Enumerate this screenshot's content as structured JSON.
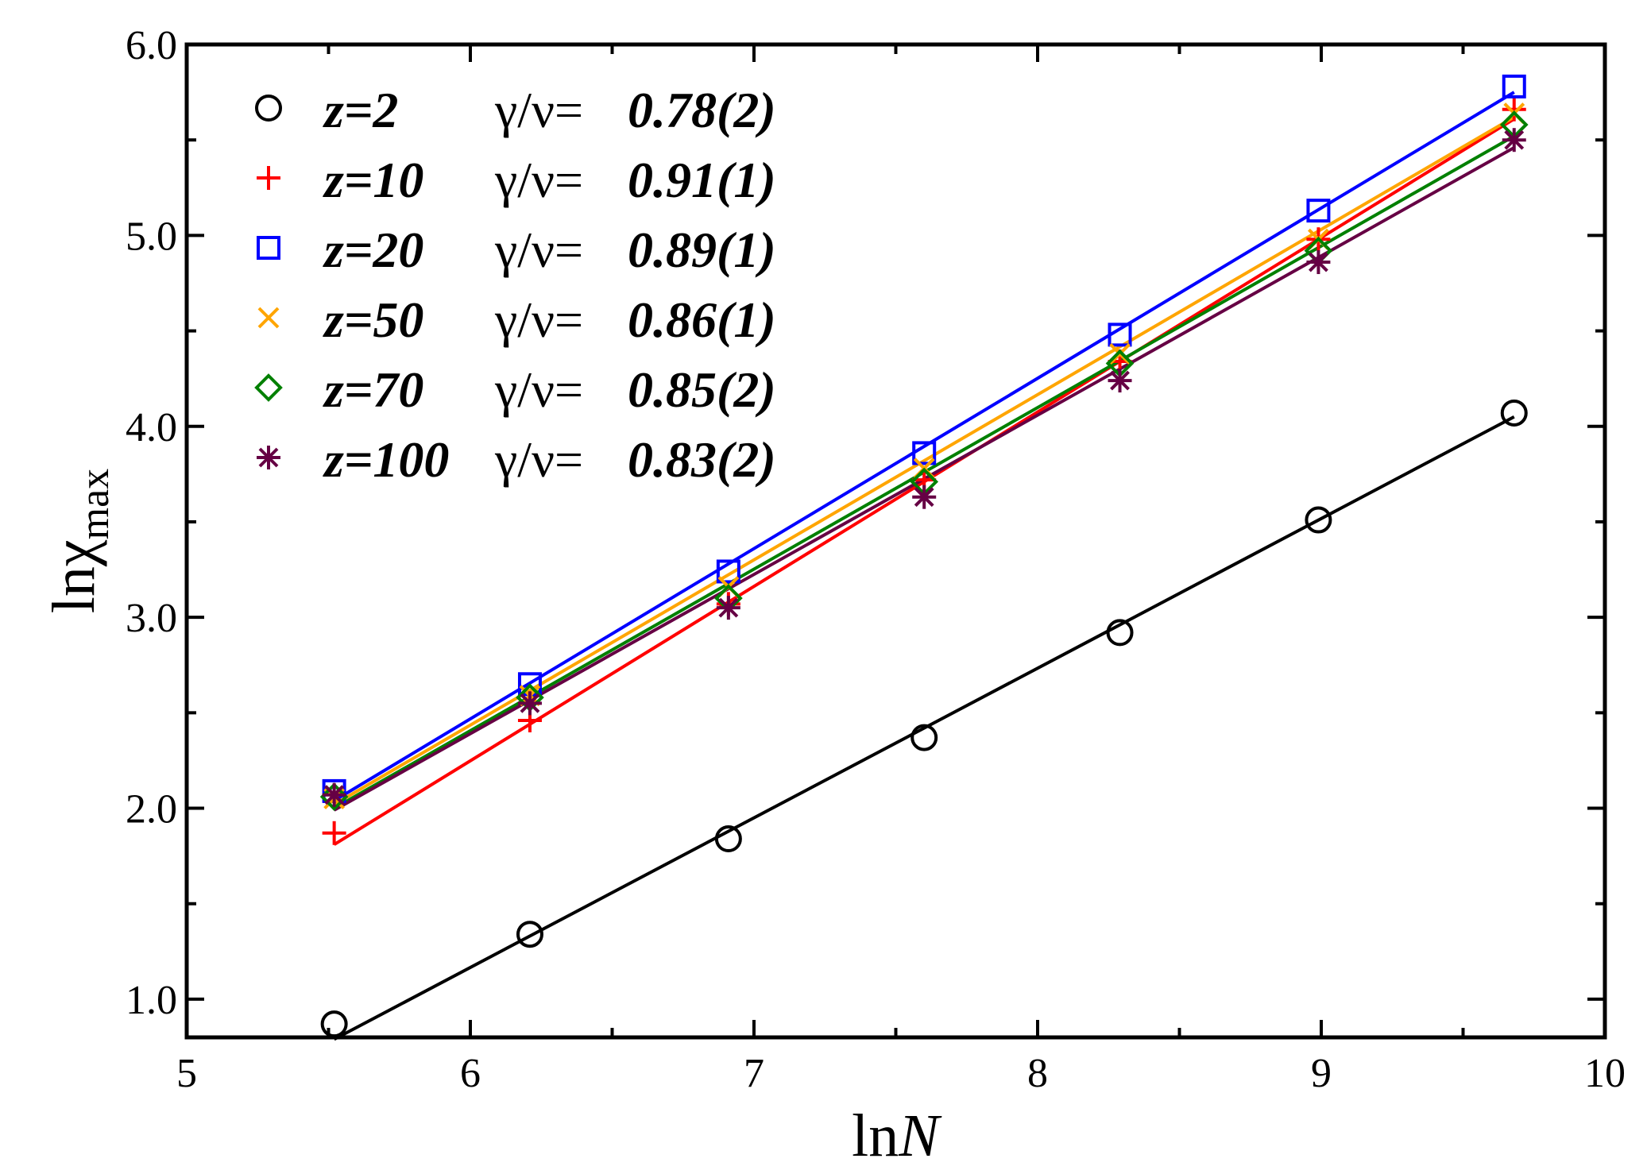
{
  "chart_data": {
    "type": "scatter",
    "title": "",
    "xlabel_prefix": "ln",
    "xlabel_var": "N",
    "ylabel_prefix": "lnχ",
    "ylabel_sub": "max",
    "xlim": [
      5,
      10
    ],
    "ylim": [
      0.8,
      6.0
    ],
    "xticks": [
      5,
      6,
      7,
      8,
      9,
      10
    ],
    "xtick_labels": [
      "5",
      "6",
      "7",
      "8",
      "9",
      "10"
    ],
    "yticks": [
      1.0,
      2.0,
      3.0,
      4.0,
      5.0,
      6.0
    ],
    "ytick_labels": [
      "1.0",
      "2.0",
      "3.0",
      "4.0",
      "5.0",
      "6.0"
    ],
    "x": [
      5.52,
      6.21,
      6.91,
      7.6,
      8.29,
      8.99,
      9.68
    ],
    "legend_position": "top-left",
    "gamma_label": "γ/ν=",
    "series": [
      {
        "name": "z=2",
        "z_label": "z=2",
        "exponent": "0.78(2)",
        "color": "#000000",
        "marker": "circle",
        "values": [
          0.87,
          1.34,
          1.84,
          2.37,
          2.92,
          3.51,
          4.07
        ],
        "fit": [
          0.79,
          4.05
        ]
      },
      {
        "name": "z=10",
        "z_label": "z=10",
        "exponent": "0.91(1)",
        "color": "#ff0000",
        "marker": "plus",
        "values": [
          1.87,
          2.46,
          3.07,
          3.72,
          4.34,
          4.98,
          5.66
        ],
        "fit": [
          1.81,
          5.61
        ]
      },
      {
        "name": "z=20",
        "z_label": "z=20",
        "exponent": "0.89(1)",
        "color": "#0000ff",
        "marker": "square",
        "values": [
          2.09,
          2.65,
          3.24,
          3.86,
          4.48,
          5.13,
          5.78
        ],
        "fit": [
          2.04,
          5.75
        ]
      },
      {
        "name": "z=50",
        "z_label": "z=50",
        "exponent": "0.86(1)",
        "color": "#ffa500",
        "marker": "cross",
        "values": [
          2.05,
          2.59,
          3.16,
          3.78,
          4.38,
          4.98,
          5.64
        ],
        "fit": [
          2.02,
          5.62
        ]
      },
      {
        "name": "z=70",
        "z_label": "z=70",
        "exponent": "0.85(2)",
        "color": "#008000",
        "marker": "diamond",
        "values": [
          2.06,
          2.58,
          3.1,
          3.71,
          4.33,
          4.92,
          5.58
        ],
        "fit": [
          2.0,
          5.52
        ]
      },
      {
        "name": "z=100",
        "z_label": "z=100",
        "exponent": "0.83(2)",
        "color": "#660044",
        "marker": "asterisk",
        "values": [
          2.07,
          2.55,
          3.05,
          3.63,
          4.24,
          4.86,
          5.5
        ],
        "fit": [
          1.99,
          5.46
        ]
      }
    ]
  }
}
